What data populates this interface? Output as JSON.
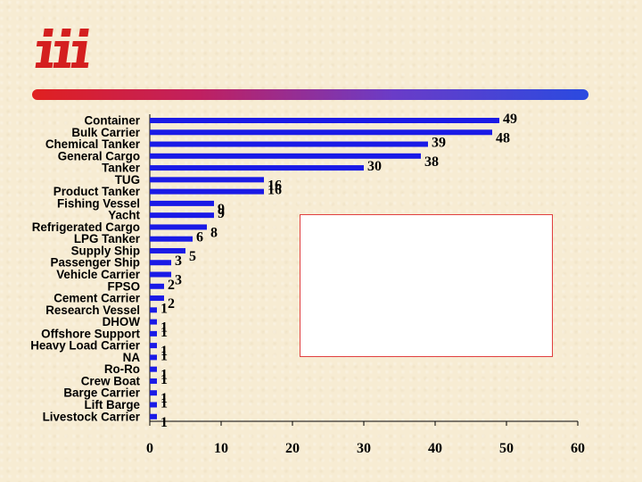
{
  "chart_data": {
    "type": "bar",
    "orientation": "horizontal",
    "categories": [
      "Container",
      "Bulk Carrier",
      "Chemical Tanker",
      "General Cargo",
      "Tanker",
      "TUG",
      "Product Tanker",
      "Fishing Vessel",
      "Yacht",
      "Refrigerated Cargo",
      "LPG Tanker",
      "Supply Ship",
      "Passenger Ship",
      "Vehicle Carrier",
      "FPSO",
      "Cement Carrier",
      "Research Vessel",
      "DHOW",
      "Offshore Support",
      "Heavy Load Carrier",
      "NA",
      "Ro-Ro",
      "Crew Boat",
      "Barge Carrier",
      "Lift Barge",
      "Livestock Carrier"
    ],
    "values": [
      49,
      48,
      39,
      38,
      30,
      16,
      16,
      9,
      9,
      8,
      6,
      5,
      3,
      3,
      2,
      2,
      1,
      1,
      1,
      1,
      1,
      1,
      1,
      1,
      1,
      1
    ],
    "value_labels": [
      "49",
      "48",
      "39",
      "38",
      "30",
      "16",
      "16",
      "9",
      "9",
      "8",
      "6",
      "5",
      "3",
      "3",
      "2",
      "2",
      "1",
      "1",
      "1",
      "1",
      "1",
      "1",
      "1",
      "1",
      "1",
      "1"
    ],
    "xlim": [
      0,
      60
    ],
    "xticks": [
      "0",
      "10",
      "20",
      "30",
      "40",
      "50",
      "60"
    ],
    "title": "",
    "xlabel": "",
    "ylabel": "",
    "grid": false,
    "legend": "none",
    "bar_color": "#1a1ae6"
  },
  "logo": {
    "name": "iii-logo",
    "color": "#d41f1f"
  }
}
